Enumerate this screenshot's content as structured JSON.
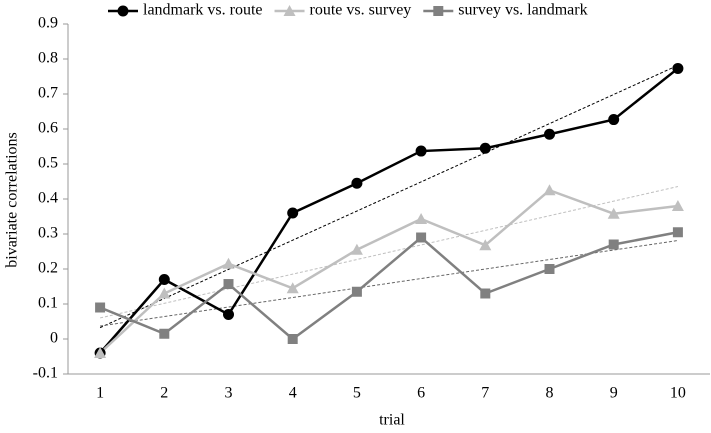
{
  "chart_data": {
    "type": "line",
    "x_label": "trial",
    "y_label": "bivariate correlations",
    "x": [
      1,
      2,
      3,
      4,
      5,
      6,
      7,
      8,
      9,
      10
    ],
    "xlim": [
      0.5,
      10.5
    ],
    "xticks": [
      1,
      2,
      3,
      4,
      5,
      6,
      7,
      8,
      9,
      10
    ],
    "ylim": [
      -0.1,
      0.9
    ],
    "yticks": [
      -0.1,
      0,
      0.1,
      0.2,
      0.3,
      0.4,
      0.5,
      0.6,
      0.7,
      0.8,
      0.9
    ],
    "grid": false,
    "legend": "top",
    "trendline": true,
    "series": [
      {
        "name": "landmark vs. route",
        "color": "#000000",
        "marker": "circle",
        "values": [
          -0.04,
          0.17,
          0.07,
          0.36,
          0.445,
          0.537,
          0.545,
          0.585,
          0.627,
          0.773
        ]
      },
      {
        "name": "route vs. survey",
        "color": "#bfbfbf",
        "marker": "triangle",
        "values": [
          -0.04,
          0.13,
          0.215,
          0.145,
          0.255,
          0.343,
          0.268,
          0.425,
          0.358,
          0.38
        ]
      },
      {
        "name": "survey vs. landmark",
        "color": "#808080",
        "marker": "square",
        "values": [
          0.09,
          0.015,
          0.157,
          0.0,
          0.135,
          0.29,
          0.13,
          0.2,
          0.27,
          0.305
        ]
      }
    ]
  }
}
